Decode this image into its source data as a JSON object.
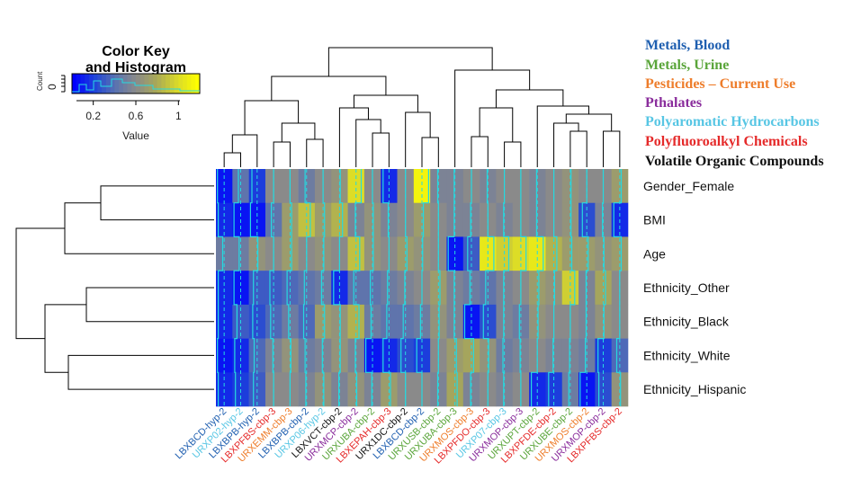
{
  "chart_data": {
    "type": "heatmap",
    "rows": [
      "Gender_Female",
      "BMI",
      "Age",
      "Ethnicity_Other",
      "Ethnicity_Black",
      "Ethnicity_White",
      "Ethnicity_Hispanic"
    ],
    "columns": [
      {
        "label": "LBXBCD-hyp-2",
        "category": "Metals, Blood"
      },
      {
        "label": "URXP02-hyp-2",
        "category": "Polyaromatic Hydrocarbons"
      },
      {
        "label": "LBXBPB-hyp-2",
        "category": "Metals, Blood"
      },
      {
        "label": "LBXPFBS-cbp-3",
        "category": "Polyfluoroalkyl Chemicals"
      },
      {
        "label": "URXEMM-cbp-3",
        "category": "Pesticides – Current Use"
      },
      {
        "label": "LBXBPB-cbp-2",
        "category": "Metals, Blood"
      },
      {
        "label": "URXP06-hyp-2",
        "category": "Polyaromatic Hydrocarbons"
      },
      {
        "label": "LBXVCT-cbp-2",
        "category": "Volatile Organic Compounds"
      },
      {
        "label": "URXMCP-cbp-2",
        "category": "Pthalates"
      },
      {
        "label": "URXUBA-cbp-2",
        "category": "Metals, Urine"
      },
      {
        "label": "LBXEPAH-cbp-3",
        "category": "Polyfluoroalkyl Chemicals"
      },
      {
        "label": "URX1DC-cbp-2",
        "category": "Volatile Organic Compounds"
      },
      {
        "label": "LBXBCD-cbp-2",
        "category": "Metals, Blood"
      },
      {
        "label": "URXUSB-cbp-2",
        "category": "Metals, Urine"
      },
      {
        "label": "URXUBA-cbp-3",
        "category": "Metals, Urine"
      },
      {
        "label": "URXMOS-cbp-3",
        "category": "Pesticides – Current Use"
      },
      {
        "label": "LBXPFDO-cbp-3",
        "category": "Polyfluoroalkyl Chemicals"
      },
      {
        "label": "URXP07-cbp-3",
        "category": "Polyaromatic Hydrocarbons"
      },
      {
        "label": "URXMOP-cbp-3",
        "category": "Pthalates"
      },
      {
        "label": "URXUPT-cbp-2",
        "category": "Metals, Urine"
      },
      {
        "label": "LBXPFDE-cbp-2",
        "category": "Polyfluoroalkyl Chemicals"
      },
      {
        "label": "URXUBE-cbp-2",
        "category": "Metals, Urine"
      },
      {
        "label": "URXMOS-cbp-2",
        "category": "Pesticides – Current Use"
      },
      {
        "label": "URXMOP-cbp-2",
        "category": "Pthalates"
      },
      {
        "label": "LBXPFBS-cbp-2",
        "category": "Polyfluoroalkyl Chemicals"
      }
    ],
    "values": [
      [
        0.05,
        0.35,
        0.15,
        0.5,
        0.5,
        0.4,
        0.5,
        0.55,
        0.85,
        0.5,
        0.1,
        0.5,
        0.95,
        0.45,
        0.45,
        0.5,
        0.45,
        0.5,
        0.5,
        0.45,
        0.5,
        0.55,
        0.5,
        0.5,
        0.6
      ],
      [
        0.1,
        0.05,
        0.05,
        0.35,
        0.6,
        0.75,
        0.6,
        0.7,
        0.45,
        0.55,
        0.45,
        0.5,
        0.6,
        0.5,
        0.45,
        0.45,
        0.5,
        0.45,
        0.5,
        0.45,
        0.5,
        0.55,
        0.2,
        0.45,
        0.1
      ],
      [
        0.4,
        0.4,
        0.55,
        0.5,
        0.6,
        0.5,
        0.55,
        0.5,
        0.75,
        0.55,
        0.5,
        0.6,
        0.55,
        0.5,
        0.05,
        0.25,
        0.9,
        0.8,
        0.85,
        0.9,
        0.7,
        0.6,
        0.6,
        0.55,
        0.6
      ],
      [
        0.1,
        0.05,
        0.25,
        0.25,
        0.3,
        0.35,
        0.4,
        0.1,
        0.35,
        0.35,
        0.4,
        0.45,
        0.5,
        0.6,
        0.45,
        0.4,
        0.35,
        0.45,
        0.5,
        0.6,
        0.55,
        0.8,
        0.45,
        0.65,
        0.5
      ],
      [
        0.1,
        0.25,
        0.2,
        0.3,
        0.4,
        0.3,
        0.6,
        0.55,
        0.7,
        0.4,
        0.35,
        0.35,
        0.4,
        0.55,
        0.45,
        0.05,
        0.2,
        0.45,
        0.4,
        0.55,
        0.5,
        0.5,
        0.45,
        0.55,
        0.5
      ],
      [
        0.05,
        0.1,
        0.3,
        0.45,
        0.55,
        0.4,
        0.45,
        0.55,
        0.45,
        0.05,
        0.1,
        0.2,
        0.15,
        0.5,
        0.6,
        0.65,
        0.55,
        0.4,
        0.45,
        0.5,
        0.45,
        0.45,
        0.4,
        0.15,
        0.3
      ],
      [
        0.1,
        0.15,
        0.25,
        0.5,
        0.5,
        0.45,
        0.55,
        0.45,
        0.55,
        0.45,
        0.6,
        0.5,
        0.5,
        0.45,
        0.65,
        0.45,
        0.5,
        0.45,
        0.5,
        0.1,
        0.15,
        0.4,
        0.05,
        0.2,
        0.55
      ]
    ],
    "color_scale": [
      "#0000ff",
      "#1f44d8",
      "#5a72b0",
      "#8a8a8a",
      "#a8a858",
      "#d9d92a",
      "#ffff00"
    ],
    "trace_color": "#26d9e0",
    "color_key": {
      "title_line1": "Color Key",
      "title_line2": "and Histogram",
      "y_label": "Count",
      "y_tick": "0",
      "x_label": "Value",
      "x_ticks": [
        "0.2",
        "0.6",
        "1"
      ],
      "x_tick_values": [
        0.2,
        0.6,
        1.0
      ],
      "range": [
        0,
        1.2
      ]
    }
  },
  "legend": [
    {
      "label": "Metals, Blood",
      "color": "#1f5fb0"
    },
    {
      "label": "Metals, Urine",
      "color": "#5aa53a"
    },
    {
      "label": "Pesticides – Current Use",
      "color": "#ee7d2b"
    },
    {
      "label": "Pthalates",
      "color": "#8a2d9c"
    },
    {
      "label": "Polyaromatic Hydrocarbons",
      "color": "#57c6e4"
    },
    {
      "label": "Polyfluoroalkyl Chemicals",
      "color": "#e52a2a"
    },
    {
      "label": "Volatile Organic Compounds",
      "color": "#111111"
    }
  ]
}
